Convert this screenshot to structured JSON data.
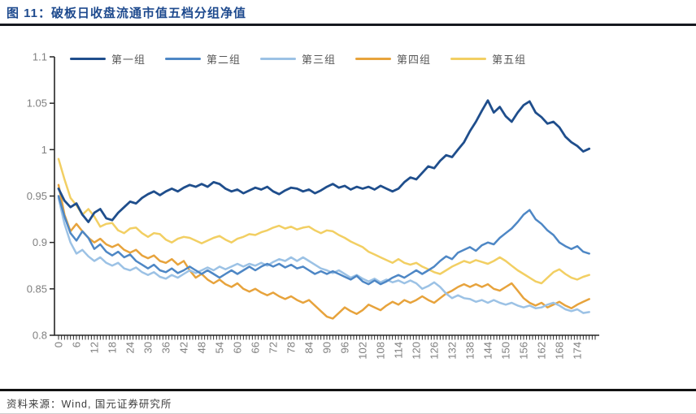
{
  "header": {
    "title": "图 11：破板日收盘流通市值五档分组净值"
  },
  "footer": {
    "source": "资料来源：Wind, 国元证券研究所"
  },
  "colors": {
    "title_text": "#1E4A8E",
    "axis_label": "#7f7f7f",
    "axis_line": "#262626",
    "legend_text": "#595959"
  },
  "chart_data": {
    "type": "line",
    "title": "破板日收盘流通市值五档分组净值",
    "xlabel": "",
    "ylabel": "",
    "xlim": [
      0,
      180
    ],
    "ylim": [
      0.8,
      1.1
    ],
    "grid": false,
    "legend_position": "top",
    "y_tick_labels": [
      "1.1",
      "1.05",
      "1",
      "0.95",
      "0.9",
      "0.85",
      "0.8"
    ],
    "y_ticks": [
      1.1,
      1.05,
      1.0,
      0.95,
      0.9,
      0.85,
      0.8
    ],
    "x_ticks": [
      0,
      6,
      12,
      18,
      24,
      30,
      36,
      42,
      48,
      54,
      60,
      66,
      72,
      78,
      84,
      90,
      96,
      102,
      108,
      114,
      120,
      126,
      132,
      138,
      144,
      150,
      156,
      162,
      168,
      174
    ],
    "x_minor_tick_every": 1,
    "x_start": 0,
    "x_step": 2,
    "series": [
      {
        "name": "第一组",
        "color": "#1F4E8C",
        "values": [
          0.958,
          0.945,
          0.938,
          0.942,
          0.93,
          0.922,
          0.932,
          0.936,
          0.926,
          0.924,
          0.932,
          0.938,
          0.944,
          0.942,
          0.948,
          0.952,
          0.955,
          0.951,
          0.955,
          0.958,
          0.955,
          0.959,
          0.962,
          0.96,
          0.963,
          0.96,
          0.965,
          0.963,
          0.958,
          0.955,
          0.957,
          0.953,
          0.956,
          0.959,
          0.957,
          0.96,
          0.955,
          0.952,
          0.956,
          0.959,
          0.958,
          0.955,
          0.957,
          0.953,
          0.956,
          0.96,
          0.963,
          0.959,
          0.961,
          0.957,
          0.96,
          0.958,
          0.96,
          0.957,
          0.961,
          0.958,
          0.955,
          0.958,
          0.965,
          0.97,
          0.968,
          0.975,
          0.982,
          0.98,
          0.988,
          0.994,
          0.992,
          1.0,
          1.008,
          1.02,
          1.03,
          1.042,
          1.053,
          1.04,
          1.046,
          1.036,
          1.03,
          1.04,
          1.048,
          1.052,
          1.04,
          1.035,
          1.028,
          1.03,
          1.024,
          1.014,
          1.008,
          1.004,
          0.998,
          1.001
        ]
      },
      {
        "name": "第二组",
        "color": "#4E87C5",
        "values": [
          0.95,
          0.928,
          0.91,
          0.902,
          0.912,
          0.905,
          0.893,
          0.898,
          0.89,
          0.886,
          0.89,
          0.884,
          0.887,
          0.88,
          0.876,
          0.872,
          0.876,
          0.87,
          0.868,
          0.872,
          0.867,
          0.87,
          0.874,
          0.87,
          0.866,
          0.87,
          0.866,
          0.862,
          0.866,
          0.87,
          0.866,
          0.87,
          0.874,
          0.87,
          0.874,
          0.877,
          0.874,
          0.877,
          0.873,
          0.876,
          0.872,
          0.874,
          0.87,
          0.866,
          0.869,
          0.866,
          0.869,
          0.866,
          0.863,
          0.86,
          0.864,
          0.858,
          0.855,
          0.859,
          0.855,
          0.858,
          0.862,
          0.865,
          0.862,
          0.866,
          0.87,
          0.866,
          0.87,
          0.874,
          0.88,
          0.885,
          0.882,
          0.889,
          0.892,
          0.895,
          0.891,
          0.897,
          0.9,
          0.898,
          0.905,
          0.91,
          0.915,
          0.922,
          0.93,
          0.935,
          0.925,
          0.92,
          0.913,
          0.908,
          0.9,
          0.896,
          0.893,
          0.896,
          0.89,
          0.888
        ]
      },
      {
        "name": "第三组",
        "color": "#9CC2E5",
        "values": [
          0.948,
          0.92,
          0.9,
          0.888,
          0.892,
          0.885,
          0.88,
          0.884,
          0.878,
          0.875,
          0.878,
          0.872,
          0.87,
          0.873,
          0.868,
          0.865,
          0.868,
          0.863,
          0.861,
          0.865,
          0.862,
          0.866,
          0.87,
          0.867,
          0.87,
          0.873,
          0.87,
          0.874,
          0.871,
          0.874,
          0.877,
          0.874,
          0.877,
          0.875,
          0.878,
          0.875,
          0.879,
          0.882,
          0.88,
          0.884,
          0.88,
          0.884,
          0.88,
          0.876,
          0.872,
          0.87,
          0.867,
          0.87,
          0.866,
          0.862,
          0.865,
          0.861,
          0.858,
          0.861,
          0.857,
          0.86,
          0.857,
          0.859,
          0.856,
          0.859,
          0.856,
          0.85,
          0.853,
          0.857,
          0.852,
          0.845,
          0.84,
          0.843,
          0.84,
          0.839,
          0.836,
          0.838,
          0.835,
          0.838,
          0.835,
          0.833,
          0.835,
          0.832,
          0.83,
          0.832,
          0.829,
          0.83,
          0.833,
          0.835,
          0.832,
          0.828,
          0.826,
          0.828,
          0.824,
          0.825
        ]
      },
      {
        "name": "第四组",
        "color": "#E7A33C",
        "values": [
          0.962,
          0.93,
          0.912,
          0.92,
          0.912,
          0.905,
          0.9,
          0.904,
          0.898,
          0.895,
          0.898,
          0.892,
          0.889,
          0.892,
          0.886,
          0.883,
          0.886,
          0.88,
          0.878,
          0.882,
          0.876,
          0.88,
          0.87,
          0.862,
          0.866,
          0.86,
          0.856,
          0.86,
          0.855,
          0.852,
          0.856,
          0.85,
          0.847,
          0.85,
          0.846,
          0.843,
          0.846,
          0.842,
          0.839,
          0.842,
          0.838,
          0.835,
          0.838,
          0.832,
          0.826,
          0.82,
          0.818,
          0.824,
          0.83,
          0.826,
          0.823,
          0.827,
          0.833,
          0.83,
          0.827,
          0.832,
          0.836,
          0.833,
          0.838,
          0.835,
          0.838,
          0.842,
          0.838,
          0.835,
          0.84,
          0.845,
          0.848,
          0.852,
          0.855,
          0.852,
          0.855,
          0.852,
          0.855,
          0.85,
          0.848,
          0.852,
          0.856,
          0.848,
          0.84,
          0.835,
          0.832,
          0.835,
          0.83,
          0.833,
          0.836,
          0.832,
          0.829,
          0.833,
          0.836,
          0.839
        ]
      },
      {
        "name": "第五组",
        "color": "#F2CF63",
        "values": [
          0.99,
          0.968,
          0.948,
          0.94,
          0.93,
          0.936,
          0.928,
          0.917,
          0.92,
          0.921,
          0.913,
          0.91,
          0.915,
          0.916,
          0.91,
          0.906,
          0.91,
          0.909,
          0.903,
          0.9,
          0.904,
          0.906,
          0.905,
          0.902,
          0.899,
          0.902,
          0.905,
          0.907,
          0.903,
          0.9,
          0.904,
          0.906,
          0.909,
          0.908,
          0.911,
          0.913,
          0.916,
          0.918,
          0.915,
          0.917,
          0.914,
          0.916,
          0.917,
          0.913,
          0.91,
          0.913,
          0.912,
          0.908,
          0.905,
          0.901,
          0.898,
          0.895,
          0.89,
          0.887,
          0.884,
          0.881,
          0.878,
          0.882,
          0.878,
          0.876,
          0.878,
          0.874,
          0.871,
          0.868,
          0.866,
          0.87,
          0.874,
          0.877,
          0.88,
          0.878,
          0.881,
          0.879,
          0.877,
          0.88,
          0.884,
          0.88,
          0.875,
          0.87,
          0.866,
          0.862,
          0.858,
          0.856,
          0.862,
          0.868,
          0.871,
          0.866,
          0.862,
          0.86,
          0.863,
          0.865
        ]
      }
    ]
  }
}
